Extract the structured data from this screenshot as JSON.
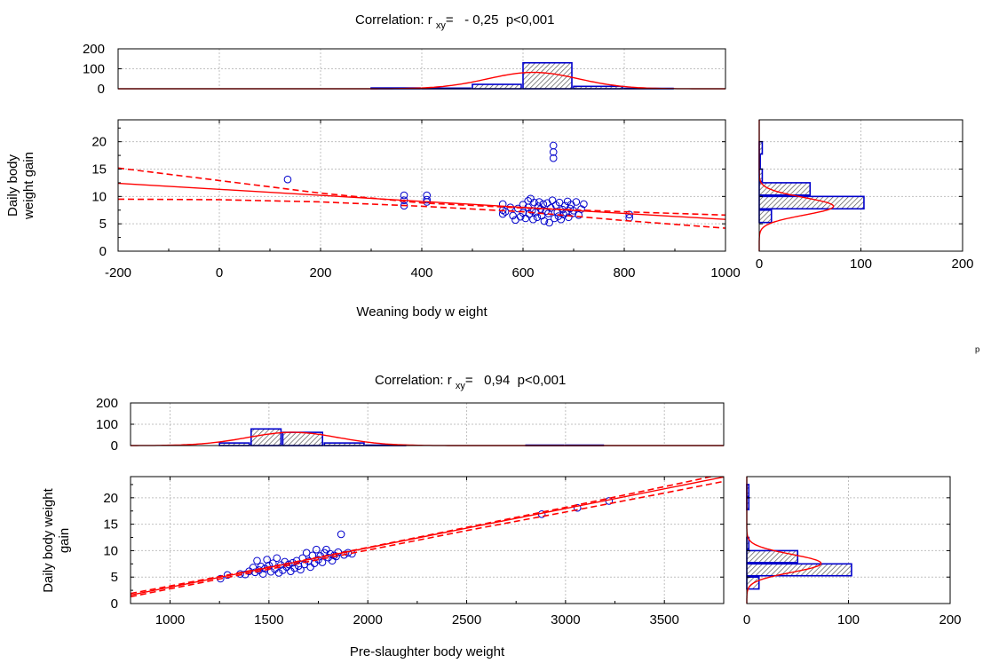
{
  "colors": {
    "fit": "#ff0000",
    "points": "#0000cc",
    "bars": "#0000cc",
    "grid": "#c0c0c0",
    "axis": "#000000"
  },
  "corner_mark": "ᵖ",
  "chart_data": [
    {
      "type": "scatter",
      "title_prefix": "Correlation: r ",
      "title_sub": "xy",
      "title_suffix": "=   - 0,25  p<0,001",
      "xlabel": "Weaning body w eight",
      "ylabel_lines": [
        "Daily body",
        "weight gain"
      ],
      "xlim": [
        -200,
        1000
      ],
      "ylim": [
        0,
        24
      ],
      "xticks": [
        -200,
        0,
        200,
        400,
        600,
        800,
        1000
      ],
      "yticks": [
        0,
        5,
        10,
        15,
        20
      ],
      "grid": true,
      "fit": {
        "slope": -0.0055,
        "intercept": 11.3
      },
      "ci_upper": [
        [
          -200,
          15.2
        ],
        [
          0,
          12.9
        ],
        [
          200,
          10.6
        ],
        [
          400,
          8.8
        ],
        [
          600,
          7.9
        ],
        [
          800,
          7.2
        ],
        [
          1000,
          6.6
        ]
      ],
      "ci_lower": [
        [
          -200,
          9.5
        ],
        [
          0,
          9.4
        ],
        [
          200,
          9.0
        ],
        [
          400,
          8.2
        ],
        [
          600,
          7.2
        ],
        [
          800,
          5.6
        ],
        [
          1000,
          4.2
        ]
      ],
      "points": [
        [
          135,
          13.1
        ],
        [
          365,
          10.2
        ],
        [
          365,
          9.3
        ],
        [
          365,
          8.3
        ],
        [
          410,
          10.2
        ],
        [
          410,
          9.4
        ],
        [
          410,
          9.0
        ],
        [
          560,
          8.6
        ],
        [
          560,
          7.5
        ],
        [
          560,
          6.8
        ],
        [
          565,
          7.2
        ],
        [
          575,
          8.0
        ],
        [
          580,
          6.5
        ],
        [
          585,
          5.7
        ],
        [
          590,
          7.8
        ],
        [
          595,
          6.3
        ],
        [
          600,
          8.5
        ],
        [
          600,
          7.0
        ],
        [
          605,
          6.0
        ],
        [
          610,
          9.2
        ],
        [
          610,
          8.0
        ],
        [
          612,
          6.8
        ],
        [
          615,
          9.6
        ],
        [
          618,
          7.4
        ],
        [
          620,
          5.8
        ],
        [
          622,
          8.9
        ],
        [
          625,
          7.1
        ],
        [
          628,
          6.2
        ],
        [
          630,
          8.2
        ],
        [
          632,
          9.0
        ],
        [
          635,
          7.7
        ],
        [
          637,
          6.5
        ],
        [
          640,
          8.6
        ],
        [
          642,
          5.5
        ],
        [
          645,
          7.3
        ],
        [
          648,
          8.8
        ],
        [
          650,
          6.9
        ],
        [
          652,
          5.2
        ],
        [
          655,
          7.9
        ],
        [
          658,
          9.3
        ],
        [
          660,
          19.3
        ],
        [
          660,
          18.1
        ],
        [
          660,
          17.0
        ],
        [
          662,
          6.0
        ],
        [
          665,
          8.4
        ],
        [
          668,
          7.1
        ],
        [
          670,
          6.4
        ],
        [
          672,
          8.9
        ],
        [
          675,
          5.8
        ],
        [
          678,
          7.6
        ],
        [
          680,
          6.7
        ],
        [
          683,
          8.3
        ],
        [
          685,
          7.0
        ],
        [
          688,
          9.1
        ],
        [
          690,
          6.2
        ],
        [
          693,
          7.8
        ],
        [
          695,
          8.5
        ],
        [
          698,
          6.9
        ],
        [
          700,
          7.4
        ],
        [
          705,
          9.0
        ],
        [
          710,
          6.6
        ],
        [
          715,
          7.7
        ],
        [
          720,
          8.6
        ],
        [
          810,
          6.7
        ],
        [
          810,
          6.1
        ]
      ],
      "top_hist": {
        "ylim": [
          0,
          200
        ],
        "yticks": [
          0,
          100,
          200
        ],
        "bars": [
          [
            300,
            400,
            4
          ],
          [
            400,
            500,
            3
          ],
          [
            500,
            600,
            22
          ],
          [
            600,
            700,
            130
          ],
          [
            700,
            800,
            12
          ],
          [
            800,
            900,
            2
          ]
        ],
        "normal": {
          "mean": 620,
          "sd": 90,
          "peak": 82
        }
      },
      "side_hist": {
        "xlim": [
          0,
          200
        ],
        "xticks": [
          0,
          100,
          200
        ],
        "bars": [
          [
            5,
            7.5,
            12
          ],
          [
            7.5,
            10,
            103
          ],
          [
            10,
            12.5,
            50
          ],
          [
            12.5,
            15,
            3
          ],
          [
            15,
            17.5,
            1
          ],
          [
            17.5,
            20,
            3
          ]
        ],
        "normal": {
          "mean": 8.2,
          "sd": 1.6,
          "peak": 73
        }
      }
    },
    {
      "type": "scatter",
      "title_prefix": "Correlation: r ",
      "title_sub": "xy",
      "title_suffix": "=   0,94  p<0,001",
      "xlabel": "Pre-slaughter body weight",
      "ylabel_lines": [
        "Daily body weight",
        "gain"
      ],
      "xlim": [
        800,
        3800
      ],
      "ylim": [
        0,
        24
      ],
      "xticks": [
        1000,
        1500,
        2000,
        2500,
        3000,
        3500
      ],
      "yticks": [
        0,
        5,
        10,
        15,
        20
      ],
      "grid": true,
      "fit": {
        "slope": 0.00744,
        "intercept": -4.35
      },
      "ci_upper": [
        [
          800,
          1.9
        ],
        [
          1500,
          6.9
        ],
        [
          2000,
          10.6
        ],
        [
          2500,
          14.4
        ],
        [
          3000,
          18.2
        ],
        [
          3500,
          22.1
        ],
        [
          3800,
          24.5
        ]
      ],
      "ci_lower": [
        [
          800,
          1.3
        ],
        [
          1500,
          6.5
        ],
        [
          2000,
          10.1
        ],
        [
          2500,
          13.8
        ],
        [
          3000,
          17.3
        ],
        [
          3500,
          20.9
        ],
        [
          3800,
          23.1
        ]
      ],
      "points": [
        [
          1255,
          4.7
        ],
        [
          1290,
          5.4
        ],
        [
          1355,
          5.6
        ],
        [
          1380,
          5.5
        ],
        [
          1400,
          6.1
        ],
        [
          1420,
          6.8
        ],
        [
          1430,
          5.9
        ],
        [
          1440,
          8.1
        ],
        [
          1450,
          6.3
        ],
        [
          1460,
          7.0
        ],
        [
          1470,
          5.6
        ],
        [
          1480,
          6.6
        ],
        [
          1490,
          8.3
        ],
        [
          1500,
          7.2
        ],
        [
          1510,
          6.0
        ],
        [
          1520,
          7.6
        ],
        [
          1530,
          6.5
        ],
        [
          1540,
          8.6
        ],
        [
          1550,
          5.8
        ],
        [
          1560,
          7.3
        ],
        [
          1570,
          6.3
        ],
        [
          1580,
          7.9
        ],
        [
          1590,
          6.9
        ],
        [
          1600,
          7.4
        ],
        [
          1610,
          6.1
        ],
        [
          1620,
          7.7
        ],
        [
          1630,
          6.7
        ],
        [
          1640,
          8.1
        ],
        [
          1650,
          7.1
        ],
        [
          1660,
          6.4
        ],
        [
          1670,
          8.6
        ],
        [
          1680,
          7.4
        ],
        [
          1690,
          9.6
        ],
        [
          1700,
          8.0
        ],
        [
          1710,
          6.9
        ],
        [
          1720,
          9.1
        ],
        [
          1730,
          7.6
        ],
        [
          1740,
          10.2
        ],
        [
          1750,
          8.3
        ],
        [
          1760,
          9.0
        ],
        [
          1770,
          7.8
        ],
        [
          1780,
          9.6
        ],
        [
          1790,
          10.2
        ],
        [
          1800,
          8.7
        ],
        [
          1810,
          9.4
        ],
        [
          1820,
          8.1
        ],
        [
          1830,
          9.1
        ],
        [
          1840,
          8.9
        ],
        [
          1850,
          9.7
        ],
        [
          1865,
          13.1
        ],
        [
          1880,
          9.2
        ],
        [
          1900,
          9.6
        ],
        [
          1920,
          9.4
        ],
        [
          2880,
          16.9
        ],
        [
          3060,
          18.1
        ],
        [
          3220,
          19.4
        ]
      ],
      "top_hist": {
        "ylim": [
          0,
          200
        ],
        "yticks": [
          0,
          100,
          200
        ],
        "bars": [
          [
            1250,
            1410,
            12
          ],
          [
            1410,
            1570,
            78
          ],
          [
            1570,
            1780,
            62
          ],
          [
            1780,
            1990,
            12
          ],
          [
            1990,
            2200,
            2
          ],
          [
            2800,
            3000,
            2
          ],
          [
            3000,
            3200,
            2
          ]
        ],
        "normal": {
          "mean": 1620,
          "sd": 230,
          "peak": 62
        }
      },
      "side_hist": {
        "xlim": [
          0,
          200
        ],
        "xticks": [
          0,
          100,
          200
        ],
        "bars": [
          [
            2.5,
            5,
            12
          ],
          [
            5,
            7.5,
            103
          ],
          [
            7.5,
            10,
            50
          ],
          [
            10,
            12.5,
            2
          ],
          [
            17.5,
            20,
            2
          ],
          [
            20,
            22.5,
            2
          ]
        ],
        "normal": {
          "mean": 7.6,
          "sd": 1.7,
          "peak": 73
        }
      }
    }
  ]
}
